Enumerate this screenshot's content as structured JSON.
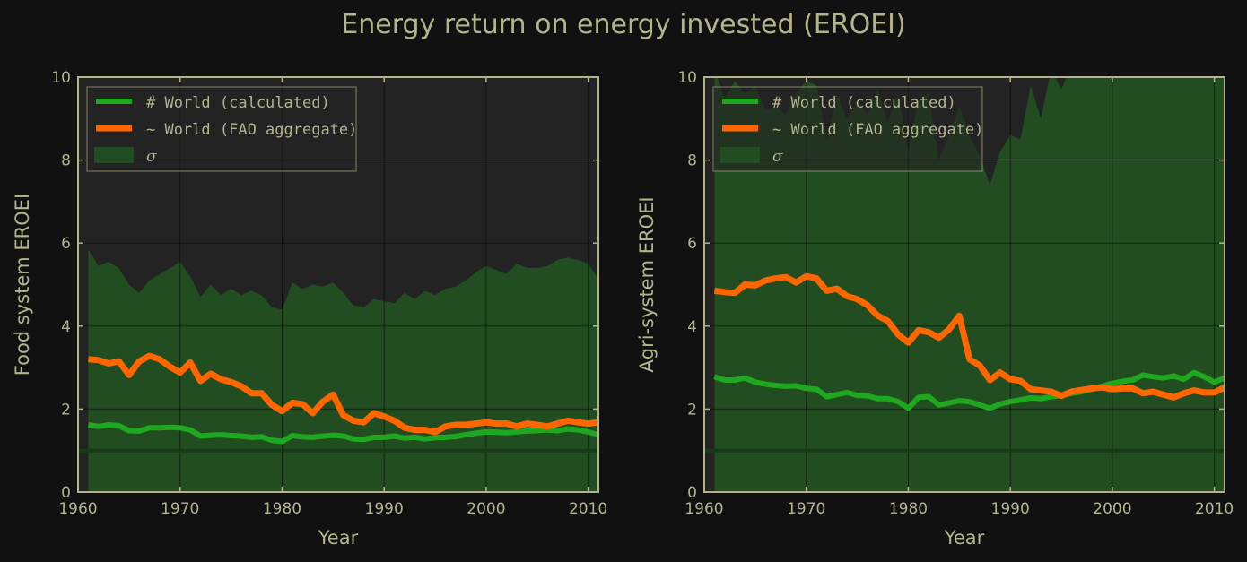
{
  "figure_title": "Energy return on energy invested (EROEI)",
  "colors": {
    "background": "#111111",
    "plot_bg": "#232323",
    "axis": "#b3b38c",
    "grid": "#000000",
    "calculated": "#1fa81f",
    "fao": "#ff6600",
    "sigma": "#214d21",
    "baseline": "#173a17"
  },
  "chart_data": [
    {
      "type": "line",
      "title": "",
      "xlabel": "Year",
      "ylabel": "Food system EROEI",
      "xlim": [
        1960,
        2011
      ],
      "ylim": [
        0,
        10
      ],
      "xticks": [
        1960,
        1970,
        1980,
        1990,
        2000,
        2010
      ],
      "yticks": [
        0,
        2,
        4,
        6,
        8,
        10
      ],
      "grid": true,
      "legend_position": "top-left",
      "baseline": 1,
      "x": [
        1961,
        1962,
        1963,
        1964,
        1965,
        1966,
        1967,
        1968,
        1969,
        1970,
        1971,
        1972,
        1973,
        1974,
        1975,
        1976,
        1977,
        1978,
        1979,
        1980,
        1981,
        1982,
        1983,
        1984,
        1985,
        1986,
        1987,
        1988,
        1989,
        1990,
        1991,
        1992,
        1993,
        1994,
        1995,
        1996,
        1997,
        1998,
        1999,
        2000,
        2001,
        2002,
        2003,
        2004,
        2005,
        2006,
        2007,
        2008,
        2009,
        2010,
        2011
      ],
      "band": {
        "name": "σ",
        "upper": [
          5.85,
          5.45,
          5.55,
          5.4,
          5.0,
          4.8,
          5.1,
          5.25,
          5.4,
          5.55,
          5.2,
          4.7,
          5.0,
          4.75,
          4.9,
          4.75,
          4.85,
          4.75,
          4.45,
          4.4,
          5.05,
          4.9,
          5.0,
          4.95,
          5.05,
          4.8,
          4.5,
          4.45,
          4.65,
          4.6,
          4.55,
          4.8,
          4.65,
          4.85,
          4.75,
          4.9,
          4.95,
          5.1,
          5.3,
          5.45,
          5.35,
          5.25,
          5.5,
          5.4,
          5.4,
          5.45,
          5.6,
          5.65,
          5.6,
          5.5,
          5.15
        ],
        "lower": [
          0,
          0,
          0,
          0,
          0,
          0,
          0,
          0,
          0,
          0,
          0,
          0,
          0,
          0,
          0,
          0,
          0,
          0,
          0,
          0,
          0,
          0,
          0,
          0,
          0,
          0,
          0,
          0,
          0,
          0,
          0,
          0,
          0,
          0,
          0,
          0,
          0,
          0,
          0,
          0,
          0,
          0,
          0,
          0,
          0,
          0,
          0,
          0,
          0,
          0,
          0
        ]
      },
      "series": [
        {
          "name": "World (calculated)",
          "legend_label": "# World (calculated)",
          "values": [
            1.62,
            1.58,
            1.62,
            1.6,
            1.48,
            1.47,
            1.55,
            1.55,
            1.56,
            1.55,
            1.5,
            1.35,
            1.37,
            1.38,
            1.36,
            1.35,
            1.32,
            1.33,
            1.25,
            1.22,
            1.36,
            1.33,
            1.32,
            1.35,
            1.37,
            1.35,
            1.28,
            1.27,
            1.32,
            1.32,
            1.35,
            1.3,
            1.32,
            1.28,
            1.31,
            1.32,
            1.34,
            1.38,
            1.42,
            1.45,
            1.44,
            1.43,
            1.45,
            1.47,
            1.48,
            1.5,
            1.48,
            1.52,
            1.5,
            1.45,
            1.38
          ]
        },
        {
          "name": "World (FAO aggregate)",
          "legend_label": "~ World (FAO aggregate)",
          "values": [
            3.2,
            3.18,
            3.1,
            3.15,
            2.82,
            3.15,
            3.28,
            3.2,
            3.02,
            2.88,
            3.12,
            2.68,
            2.85,
            2.72,
            2.65,
            2.55,
            2.38,
            2.38,
            2.1,
            1.95,
            2.15,
            2.12,
            1.9,
            2.18,
            2.35,
            1.85,
            1.72,
            1.68,
            1.9,
            1.82,
            1.72,
            1.55,
            1.5,
            1.5,
            1.45,
            1.58,
            1.62,
            1.62,
            1.65,
            1.68,
            1.65,
            1.65,
            1.58,
            1.65,
            1.62,
            1.58,
            1.65,
            1.72,
            1.68,
            1.65,
            1.68
          ]
        }
      ]
    },
    {
      "type": "line",
      "title": "",
      "xlabel": "Year",
      "ylabel": "Agri-system EROEI",
      "xlim": [
        1960,
        2011
      ],
      "ylim": [
        0,
        10
      ],
      "xticks": [
        1960,
        1970,
        1980,
        1990,
        2000,
        2010
      ],
      "yticks": [
        0,
        2,
        4,
        6,
        8,
        10
      ],
      "grid": true,
      "legend_position": "top-left",
      "baseline": 1,
      "x": [
        1961,
        1962,
        1963,
        1964,
        1965,
        1966,
        1967,
        1968,
        1969,
        1970,
        1971,
        1972,
        1973,
        1974,
        1975,
        1976,
        1977,
        1978,
        1979,
        1980,
        1981,
        1982,
        1983,
        1984,
        1985,
        1986,
        1987,
        1988,
        1989,
        1990,
        1991,
        1992,
        1993,
        1994,
        1995,
        1996,
        1997,
        1998,
        1999,
        2000,
        2001,
        2002,
        2003,
        2004,
        2005,
        2006,
        2007,
        2008,
        2009,
        2010,
        2011
      ],
      "band": {
        "name": "σ",
        "upper": [
          10.2,
          9.5,
          9.9,
          9.6,
          9.8,
          9.2,
          9.3,
          9.1,
          9.6,
          9.9,
          9.8,
          8.5,
          9.6,
          9.0,
          9.4,
          9.1,
          9.7,
          8.9,
          9.6,
          8.2,
          9.5,
          9.6,
          8.0,
          8.6,
          9.3,
          8.6,
          8.1,
          7.4,
          8.2,
          8.6,
          8.5,
          9.8,
          9.0,
          10.2,
          9.7,
          10.3,
          10.5,
          10.5,
          10.5,
          10.5,
          10.5,
          10.5,
          10.5,
          10.5,
          10.5,
          10.5,
          10.5,
          10.5,
          10.5,
          10.5,
          10.5
        ],
        "lower": [
          0,
          0,
          0,
          0,
          0,
          0,
          0,
          0,
          0,
          0,
          0,
          0,
          0,
          0,
          0,
          0,
          0,
          0,
          0,
          0,
          0,
          0,
          0,
          0,
          0,
          0,
          0,
          0,
          0,
          0,
          0,
          0,
          0,
          0,
          0,
          0,
          0,
          0,
          0,
          0,
          0,
          0,
          0,
          0,
          0,
          0,
          0,
          0,
          0,
          0,
          0
        ]
      },
      "series": [
        {
          "name": "World (calculated)",
          "legend_label": "# World (calculated)",
          "values": [
            2.78,
            2.7,
            2.7,
            2.75,
            2.65,
            2.6,
            2.57,
            2.55,
            2.56,
            2.5,
            2.48,
            2.3,
            2.35,
            2.4,
            2.33,
            2.32,
            2.25,
            2.25,
            2.18,
            2.02,
            2.28,
            2.3,
            2.1,
            2.15,
            2.2,
            2.18,
            2.1,
            2.02,
            2.12,
            2.18,
            2.22,
            2.27,
            2.25,
            2.3,
            2.33,
            2.38,
            2.42,
            2.48,
            2.55,
            2.62,
            2.67,
            2.7,
            2.82,
            2.78,
            2.75,
            2.8,
            2.72,
            2.88,
            2.78,
            2.65,
            2.75
          ]
        },
        {
          "name": "World (FAO aggregate)",
          "legend_label": "~ World (FAO aggregate)",
          "values": [
            4.85,
            4.82,
            4.8,
            5.0,
            4.98,
            5.1,
            5.15,
            5.18,
            5.05,
            5.2,
            5.15,
            4.85,
            4.9,
            4.72,
            4.65,
            4.5,
            4.25,
            4.12,
            3.8,
            3.6,
            3.9,
            3.85,
            3.72,
            3.92,
            4.25,
            3.2,
            3.05,
            2.7,
            2.88,
            2.72,
            2.68,
            2.48,
            2.45,
            2.42,
            2.32,
            2.42,
            2.46,
            2.5,
            2.52,
            2.48,
            2.5,
            2.5,
            2.38,
            2.42,
            2.35,
            2.28,
            2.38,
            2.45,
            2.4,
            2.4,
            2.52
          ]
        }
      ]
    }
  ]
}
